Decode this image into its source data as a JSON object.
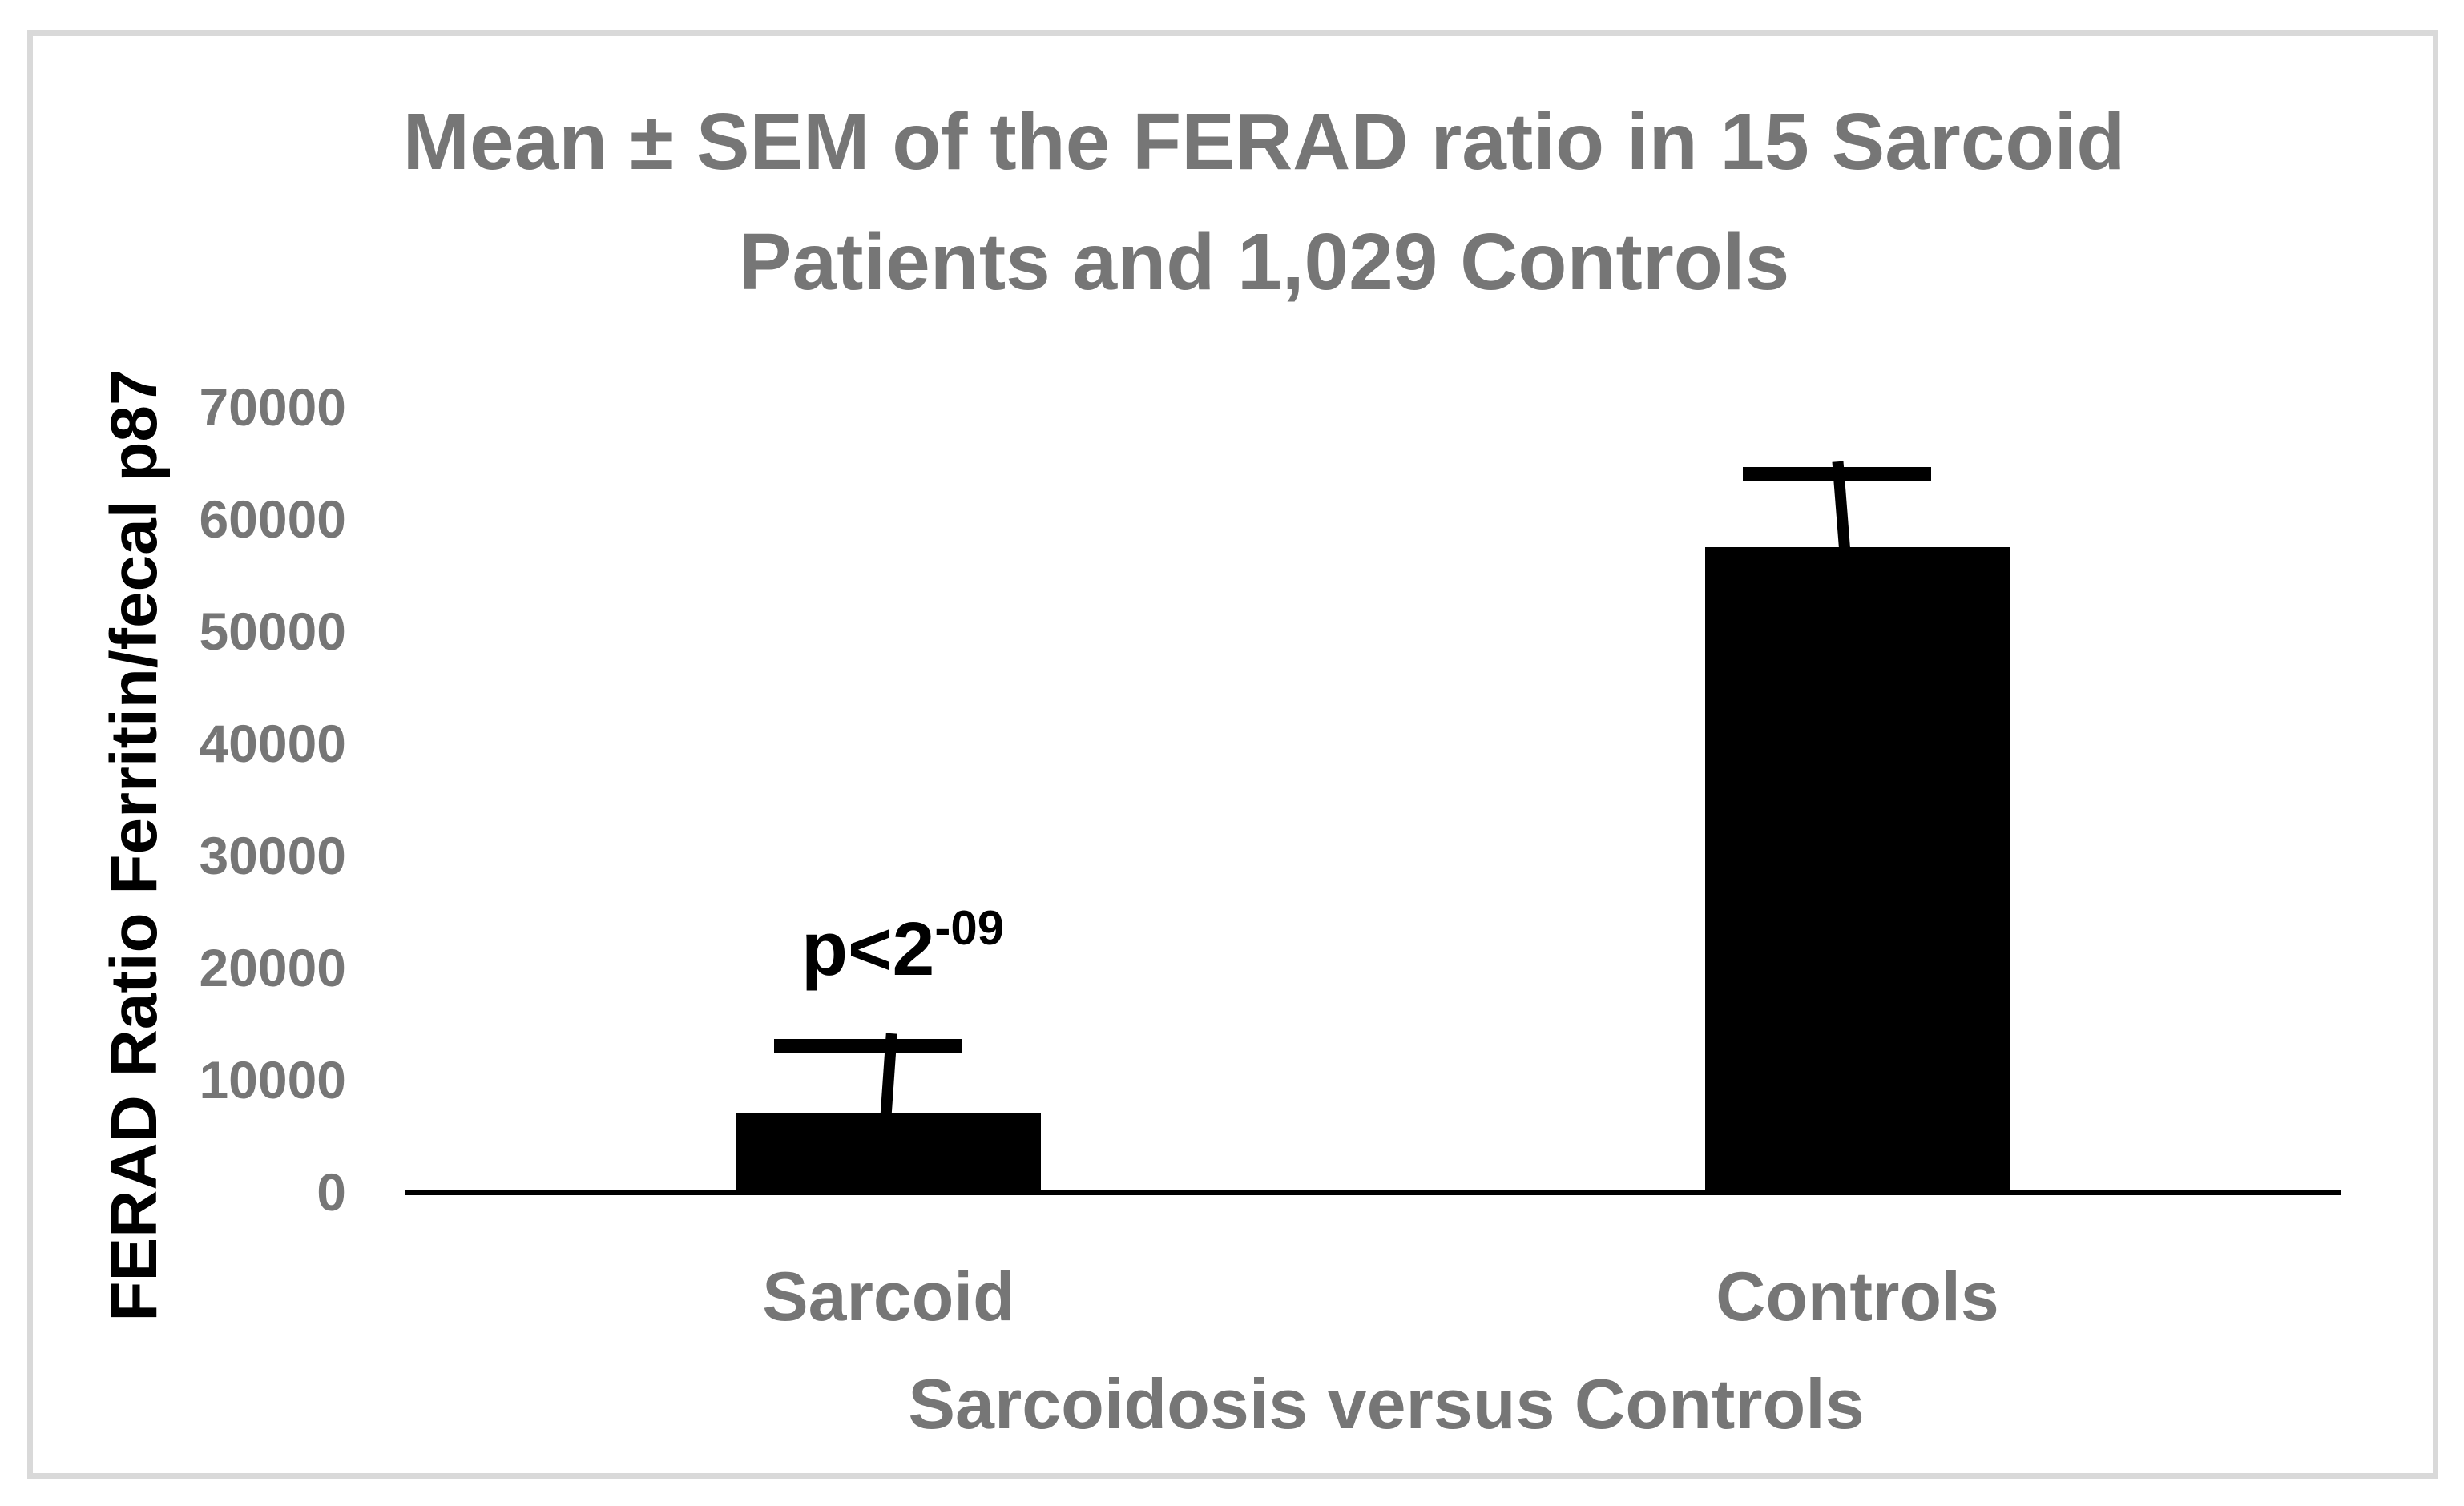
{
  "chart_data": {
    "type": "bar",
    "title": "Mean ± SEM of the FERAD ratio in 15 Sarcoid Patients and 1,029 Controls",
    "title_lines": [
      "Mean ± SEM of the FERAD ratio in 15 Sarcoid",
      "Patients and 1,029 Controls"
    ],
    "categories": [
      "Sarcoid",
      "Controls"
    ],
    "values": [
      7000,
      57500
    ],
    "error_bar_tops": [
      13000,
      64000
    ],
    "annotation": {
      "base": "p<2",
      "superscript": "-09",
      "category": "Sarcoid"
    },
    "xlabel": "Sarcoidosis versus Controls",
    "ylabel": "FERAD Ratio Ferritin/fecal p87",
    "yticks": [
      0,
      10000,
      20000,
      30000,
      40000,
      50000,
      60000,
      70000
    ],
    "ylim": [
      0,
      70000
    ],
    "grid": false,
    "legend": false,
    "bar_color": "#000000",
    "axis_color": "#000000",
    "label_color": "#767676",
    "border_color": "#d9d9d9"
  }
}
